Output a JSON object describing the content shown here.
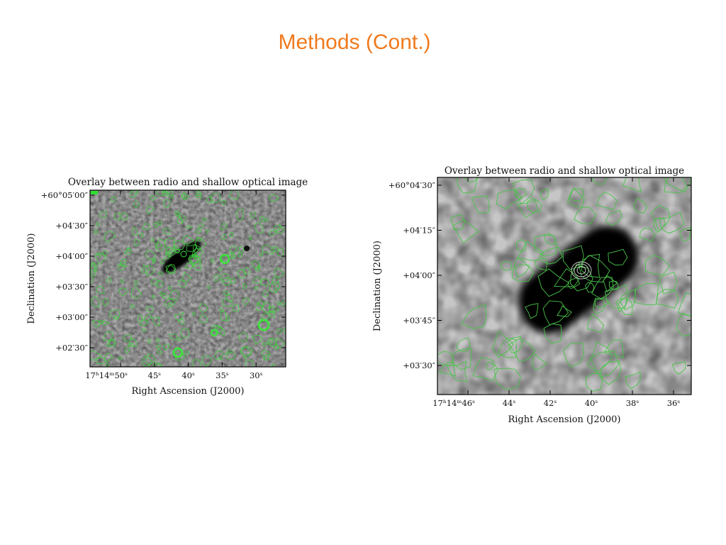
{
  "slide": {
    "title": "Methods (Cont.)",
    "figures": [
      {
        "title": "Overlay between radio and shallow optical image",
        "y_label": "Declination (J2000)",
        "x_label": "Right Ascension (J2000)",
        "y_ticks": [
          "+60°05′00″",
          "+04′30″",
          "+04′00″",
          "+03′30″",
          "+03′00″",
          "+02′30″"
        ],
        "x_ticks": [
          "17ʰ14ᵐ50ˢ",
          "45ˢ",
          "40ˢ",
          "35ˢ",
          "30ˢ"
        ]
      },
      {
        "title": "Overlay between radio and shallow optical image",
        "y_label": "Declination (J2000)",
        "x_label": "Right Ascension (J2000)",
        "y_ticks": [
          "+60°04′30″",
          "+04′15″",
          "+04′00″",
          "+03′45″",
          "+03′30″"
        ],
        "x_ticks": [
          "17ʰ14ᵐ46ˢ",
          "44ˢ",
          "42ˢ",
          "40ˢ",
          "38ˢ",
          "36ˢ"
        ]
      }
    ]
  }
}
